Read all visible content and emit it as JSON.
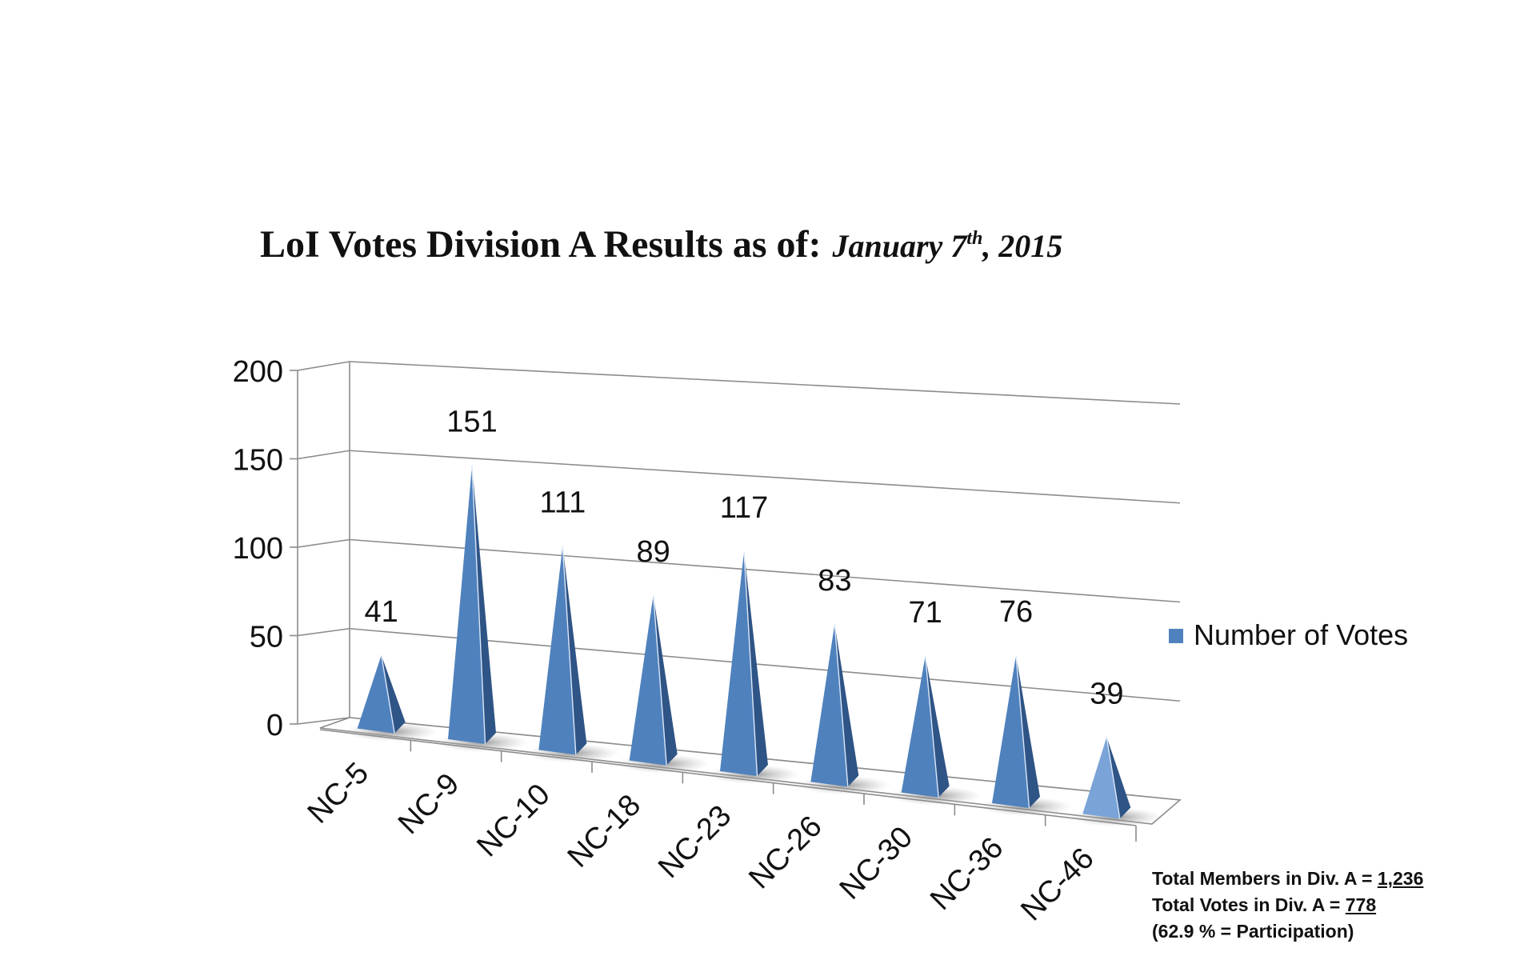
{
  "title": {
    "main": "LoI Votes Division A Results as of:",
    "date_month": "January 7",
    "date_sup": "th",
    "date_year": ", 2015"
  },
  "chart_data": {
    "type": "bar",
    "bar_shape": "3d-pyramid",
    "categories": [
      "NC-5",
      "NC-9",
      "NC-10",
      "NC-18",
      "NC-23",
      "NC-26",
      "NC-30",
      "NC-36",
      "NC-46"
    ],
    "series": [
      {
        "name": "Number of Votes",
        "values": [
          41,
          151,
          111,
          89,
          117,
          83,
          71,
          76,
          39
        ]
      }
    ],
    "ylim": [
      0,
      200
    ],
    "yticks": [
      "0",
      "50",
      "100",
      "150",
      "200"
    ],
    "grid": true,
    "legend": "right",
    "colors": {
      "bar": "#4f81bd",
      "bar_shadow": "#2f5486",
      "bar_light": "#7aa3d8",
      "grid": "#8c8c8c"
    }
  },
  "summary": {
    "members_label": "Total Members in Div. A = ",
    "members_value": "1,236",
    "votes_label": "Total Votes in Div. A = ",
    "votes_value": "778",
    "participation": "(62.9 % = Participation)"
  }
}
